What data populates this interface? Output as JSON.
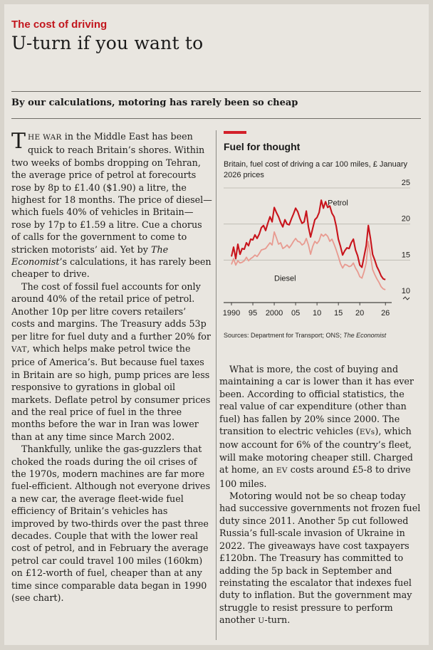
{
  "article": {
    "rubric": "The cost of driving",
    "headline": "U-turn if you want to",
    "subhead": "By our calculations, motoring has rarely been so cheap",
    "col1": {
      "p1_dropcap": "T",
      "p1_small": "HE WAR",
      "p1_rest": " in the Middle East has been quick to reach Britain’s shores. Within two weeks of bombs dropping on Tehran, the average price of petrol at forecourts rose by 8p to £1.40 ($1.90) a litre, the highest for 18 months. The price of diesel—which fuels 40% of vehicles in Britain—rose by 17p to £1.59 a litre. Cue a chorus of calls for the government to come to stricken motorists’ aid. Yet by ",
      "p1_italic": "The Economist",
      "p1_end": "’s calculations, it has rarely been cheaper to drive.",
      "p2_a": "The cost of fossil fuel accounts for only around 40% of the retail price of petrol. Another 10p per litre covers retailers’ costs and margins. The Treasury adds 53p per litre for fuel duty and a further 20% for ",
      "p2_vat": "VAT",
      "p2_b": ", which helps make petrol twice the price of America’s. But because fuel taxes in Britain are so high, pump prices are less responsive to gyrations in global oil markets. Deflate petrol by consumer prices and the real price of fuel in the three months before the war in Iran was lower than at any time since March 2002.",
      "p3": "Thankfully, unlike the gas-guzzlers that choked the roads during the oil crises of the 1970s, modern machines are far more fuel-efficient. Although not everyone drives a new car, the average fleet-wide fuel efficiency of Britain’s vehicles has improved by two-thirds over the past three decades. Couple that with the lower real cost of petrol, and in February the average petrol car could travel 100 miles (160km) on £12-worth of fuel, cheaper than at any time since comparable data began in 1990 (see chart)."
    },
    "col2": {
      "p4_a": "What is more, the cost of buying and maintaining a car is lower than it has ever been. According to official statistics, the real value of car expenditure (other than fuel) has fallen by 20% since 2000. The transition to electric vehicles (",
      "p4_evs": "EVs",
      "p4_b": "), which now account for 6% of the country’s fleet, will make motoring cheaper still. Charged at home, an ",
      "p4_ev": "EV",
      "p4_c": " costs around £5-8 to drive 100 miles.",
      "p5_a": "Motoring would not be so cheap today had successive governments not frozen fuel duty since 2011. Another 5p cut followed Russia’s full-scale invasion of Ukraine in 2022. The giveaways have cost taxpayers £120bn. The Treasury has committed to adding the 5p back in September and reinstating the escalator that indexes fuel duty to inflation. But the government may struggle to resist pressure to perform another ",
      "p5_u": "U",
      "p5_b": "-turn."
    }
  },
  "chart_data": {
    "type": "line",
    "title": "Fuel for thought",
    "subtitle": "Britain, fuel cost of driving a car 100 miles, £ January 2026 prices",
    "source_a": "Sources: Department for Transport; ONS; ",
    "source_italic": "The Economist",
    "xlim": [
      1989.5,
      2026.8
    ],
    "ylim": [
      10,
      25
    ],
    "x_tick_labels": [
      "1990",
      "95",
      "2000",
      "05",
      "10",
      "15",
      "20",
      "26"
    ],
    "x_tick_values": [
      1990,
      1995,
      2000,
      2005,
      2010,
      2015,
      2020,
      2026
    ],
    "y_tick_labels": [
      "10",
      "15",
      "20",
      "25"
    ],
    "y_tick_values": [
      10,
      15,
      20,
      25
    ],
    "grid": "horizontal",
    "colors": {
      "petrol": "#c8141c",
      "diesel": "#e89a90"
    },
    "series": [
      {
        "name": "Petrol",
        "x": [
          1990,
          1990.5,
          1991,
          1991.5,
          1992,
          1992.5,
          1993,
          1993.5,
          1994,
          1994.5,
          1995,
          1995.5,
          1996,
          1996.5,
          1997,
          1997.5,
          1998,
          1998.5,
          1999,
          1999.5,
          2000,
          2000.5,
          2001,
          2001.5,
          2002,
          2002.5,
          2003,
          2003.5,
          2004,
          2004.5,
          2005,
          2005.5,
          2006,
          2006.5,
          2007,
          2007.5,
          2008,
          2008.5,
          2009,
          2009.5,
          2010,
          2010.5,
          2011,
          2011.5,
          2012,
          2012.5,
          2013,
          2013.5,
          2014,
          2014.5,
          2015,
          2015.5,
          2016,
          2016.5,
          2017,
          2017.5,
          2018,
          2018.5,
          2019,
          2019.5,
          2020,
          2020.5,
          2021,
          2021.5,
          2022,
          2022.5,
          2023,
          2023.5,
          2024,
          2024.5,
          2025,
          2025.5,
          2026
        ],
        "values": [
          15.5,
          16.8,
          15.2,
          17.2,
          15.8,
          16.6,
          16.5,
          17.4,
          17.0,
          17.9,
          17.8,
          18.5,
          18.0,
          18.6,
          19.5,
          19.8,
          19.1,
          20.1,
          21.0,
          20.3,
          22.3,
          21.6,
          21.0,
          20.2,
          19.6,
          20.6,
          20.0,
          19.9,
          20.7,
          21.4,
          22.2,
          21.7,
          20.8,
          20.1,
          20.3,
          21.8,
          19.6,
          18.2,
          19.4,
          20.6,
          20.9,
          21.6,
          23.3,
          22.2,
          23.1,
          22.3,
          22.5,
          21.5,
          21.0,
          19.7,
          17.9,
          16.9,
          15.7,
          16.3,
          16.7,
          16.6,
          17.4,
          17.9,
          16.4,
          15.6,
          14.3,
          14.0,
          15.5,
          17.0,
          19.8,
          18.0,
          15.8,
          15.0,
          14.1,
          13.5,
          12.8,
          12.4,
          12.3
        ]
      },
      {
        "name": "Diesel",
        "x": [
          1990,
          1990.5,
          1991,
          1991.5,
          1992,
          1992.5,
          1993,
          1993.5,
          1994,
          1994.5,
          1995,
          1995.5,
          1996,
          1996.5,
          1997,
          1997.5,
          1998,
          1998.5,
          1999,
          1999.5,
          2000,
          2000.5,
          2001,
          2001.5,
          2002,
          2002.5,
          2003,
          2003.5,
          2004,
          2004.5,
          2005,
          2005.5,
          2006,
          2006.5,
          2007,
          2007.5,
          2008,
          2008.5,
          2009,
          2009.5,
          2010,
          2010.5,
          2011,
          2011.5,
          2012,
          2012.5,
          2013,
          2013.5,
          2014,
          2014.5,
          2015,
          2015.5,
          2016,
          2016.5,
          2017,
          2017.5,
          2018,
          2018.5,
          2019,
          2019.5,
          2020,
          2020.5,
          2021,
          2021.5,
          2022,
          2022.5,
          2023,
          2023.5,
          2024,
          2024.5,
          2025,
          2025.5,
          2026
        ],
        "values": [
          14.4,
          15.2,
          14.3,
          14.9,
          14.6,
          14.7,
          14.9,
          15.4,
          14.9,
          15.2,
          15.4,
          15.7,
          15.5,
          15.9,
          16.4,
          16.5,
          16.6,
          17.0,
          17.4,
          17.1,
          18.9,
          18.1,
          17.2,
          17.4,
          16.6,
          16.8,
          17.1,
          16.7,
          17.1,
          17.6,
          18.0,
          17.6,
          17.5,
          17.1,
          17.3,
          18.0,
          17.1,
          15.8,
          16.9,
          17.6,
          17.3,
          17.7,
          18.6,
          18.3,
          18.6,
          18.3,
          17.6,
          17.9,
          17.2,
          16.4,
          15.5,
          14.5,
          13.9,
          14.4,
          14.3,
          14.1,
          14.2,
          14.6,
          13.9,
          13.4,
          12.7,
          12.5,
          13.4,
          14.6,
          17.6,
          15.7,
          13.7,
          13.0,
          12.4,
          11.9,
          11.3,
          11.0,
          10.9
        ]
      }
    ]
  }
}
